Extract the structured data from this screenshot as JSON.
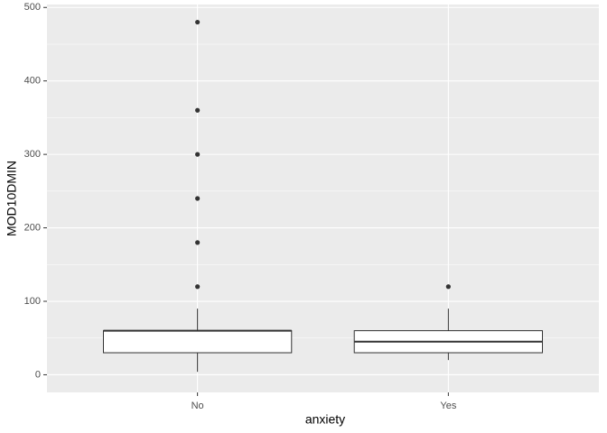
{
  "chart_data": {
    "type": "boxplot",
    "x_label": "anxiety",
    "y_label": "MOD10DMIN",
    "categories": [
      "No",
      "Yes"
    ],
    "boxes": [
      {
        "whisker_low": 4,
        "q1": 30,
        "median": 60,
        "q3": 60,
        "whisker_high": 90,
        "outliers": [
          120,
          180,
          240,
          300,
          360,
          480
        ]
      },
      {
        "whisker_low": 20,
        "q1": 30,
        "median": 45,
        "q3": 60,
        "whisker_high": 90,
        "outliers": [
          120
        ]
      }
    ],
    "ylim": [
      -24,
      504
    ],
    "yticks": [
      0,
      100,
      200,
      300,
      400,
      500
    ],
    "grid": true,
    "box_fill": "#ffffff",
    "line_color": "#333333",
    "panel_color": "#ebebeb"
  }
}
